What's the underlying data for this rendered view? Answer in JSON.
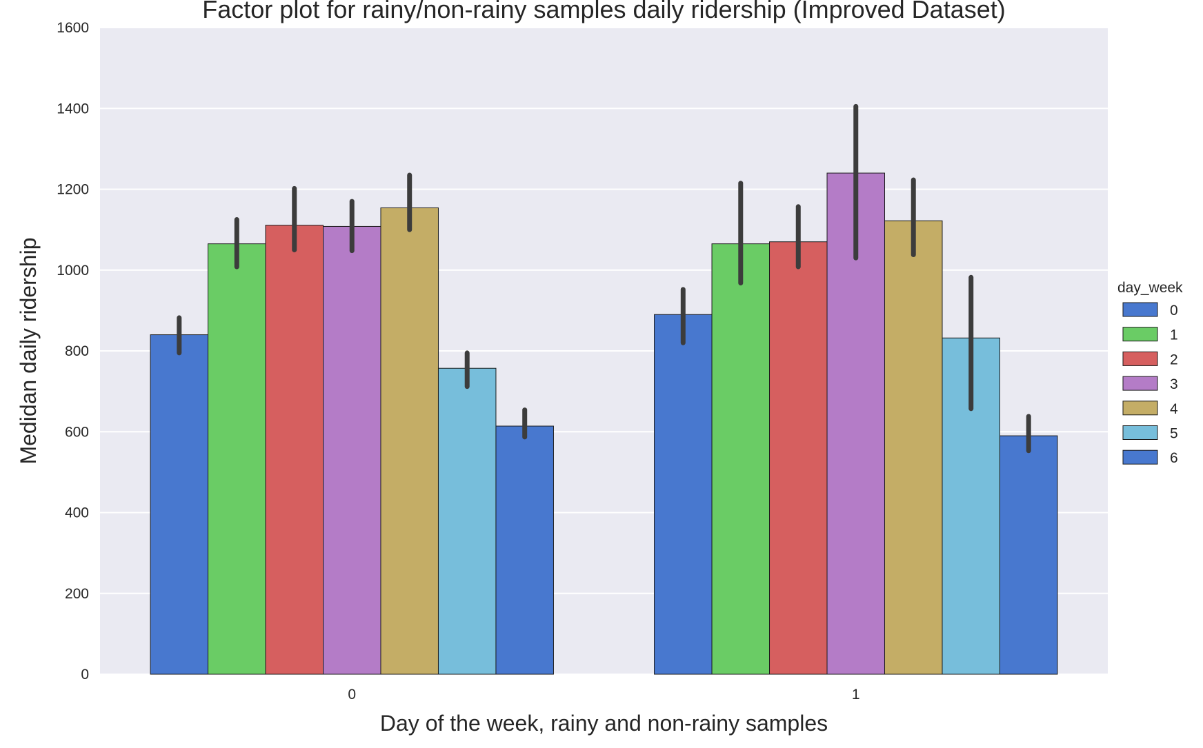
{
  "chart_data": {
    "type": "bar",
    "title": "Factor plot for rainy/non-rainy samples daily ridership (Improved Dataset)",
    "xlabel": "Day of the week, rainy and non-rainy samples",
    "ylabel": "Medidan daily ridership",
    "categories": [
      "0",
      "1"
    ],
    "ylim": [
      0,
      1600
    ],
    "yticks": [
      0,
      200,
      400,
      600,
      800,
      1000,
      1200,
      1400,
      1600
    ],
    "grid": true,
    "legend": {
      "title": "day_week",
      "placement": "right"
    },
    "colors": {
      "background": "#EAEAF2",
      "grid": "#FFFFFF",
      "errorbar": "#3C3C3C"
    },
    "series": [
      {
        "name": "0",
        "color": "#4878CF",
        "values": [
          840,
          890
        ],
        "err_low": [
          795,
          820
        ],
        "err_high": [
          882,
          952
        ]
      },
      {
        "name": "1",
        "color": "#6ACC65",
        "values": [
          1065,
          1065
        ],
        "err_low": [
          1008,
          968
        ],
        "err_high": [
          1125,
          1215
        ]
      },
      {
        "name": "2",
        "color": "#D65F5F",
        "values": [
          1111,
          1070
        ],
        "err_low": [
          1050,
          1008
        ],
        "err_high": [
          1202,
          1157
        ]
      },
      {
        "name": "3",
        "color": "#B47CC7",
        "values": [
          1108,
          1240
        ],
        "err_low": [
          1048,
          1030
        ],
        "err_high": [
          1170,
          1405
        ]
      },
      {
        "name": "4",
        "color": "#C4AD66",
        "values": [
          1154,
          1122
        ],
        "err_low": [
          1100,
          1038
        ],
        "err_high": [
          1235,
          1223
        ]
      },
      {
        "name": "5",
        "color": "#77BEDB",
        "values": [
          757,
          832
        ],
        "err_low": [
          712,
          657
        ],
        "err_high": [
          795,
          982
        ]
      },
      {
        "name": "6",
        "color": "#4878CF",
        "values": [
          614,
          590
        ],
        "err_low": [
          587,
          553
        ],
        "err_high": [
          654,
          638
        ]
      }
    ]
  }
}
